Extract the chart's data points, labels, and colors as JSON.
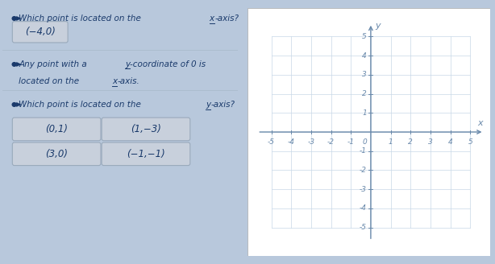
{
  "bg_color": "#b8c8dc",
  "left_panel_bg": "#dce4ee",
  "right_panel_bg": "#ffffff",
  "text_dark": "#1a3a6b",
  "text_color": "#2a4a7f",
  "grid_color": "#c8d8e8",
  "axis_color": "#6888aa",
  "tick_label_color": "#6888aa",
  "box_bg": "#c8d0dc",
  "box_border": "#9aaabb",
  "sep_color": "#aabbcc",
  "answer1": "(−4,0)",
  "choices": [
    "(0,1)",
    "(1,−3)",
    "(3,0)",
    "(−1,−1)"
  ],
  "speaker_icon": "◉"
}
